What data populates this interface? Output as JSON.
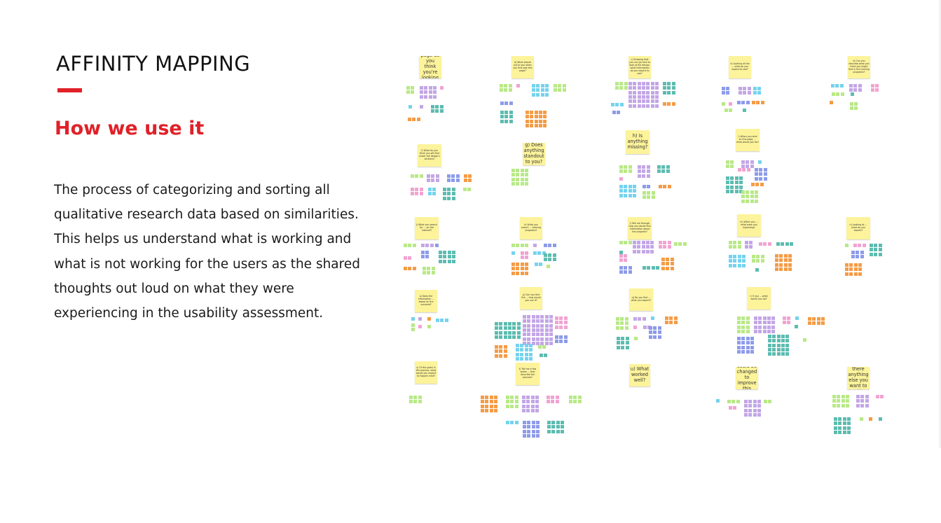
{
  "slide": {
    "title": "AFFINITY MAPPING",
    "subtitle": "How we use it",
    "body": "The process of categorizing and sorting all qualitative research data based on similarities. This helps us understand what is working and what is not working for the users as the shared thoughts out loud on what they were experiencing in the usability assessment."
  },
  "colors": {
    "accent": "#e02128",
    "note_yellow": "#fcf39b",
    "sticky_green": "#b8e986",
    "sticky_purple": "#c3a6e6",
    "sticky_blue": "#74d3ef",
    "sticky_teal": "#5cbcb0",
    "sticky_orange": "#f59b45",
    "sticky_pink": "#f1a3d2",
    "sticky_violet": "#8d9bea"
  },
  "board": {
    "questions": [
      "a) What page do you think you're looking at?",
      "b) What stands out to you when you first saw this page?",
      "c) Knowing that you can go here to look at the design, what information do you expect to see?",
      "d) Looking at the ... what do you expect to see?",
      "e) Can you describe what you think you might find in the training programs?",
      "f) What do you think you will find under the design's sections?",
      "g) Does anything standout to you?",
      "h) Is anything missing?",
      "i) When you land on this page, ... what would you do?",
      "j) What you search for ... on the internet?",
      "k) What you search ... training programs?",
      "l) Talk me through how you would find information about the program?",
      "m) When you ... what were you expecting?",
      "n) Looking at ... what do you expect?",
      "o) Does the information ... based on the scenario?",
      "p) Can you find the ... how would you use it?",
      "q) Do you find ... what you expect?",
      "r) If you ... what would you do?",
      "s) Of this point in the process, what would you expect to happen next?",
      "t) Tell me a few words ... that describe the process?",
      "u) What worked well?",
      "v) What could be changed to improve this process?",
      "w) Is there anything else you want to add?"
    ]
  }
}
